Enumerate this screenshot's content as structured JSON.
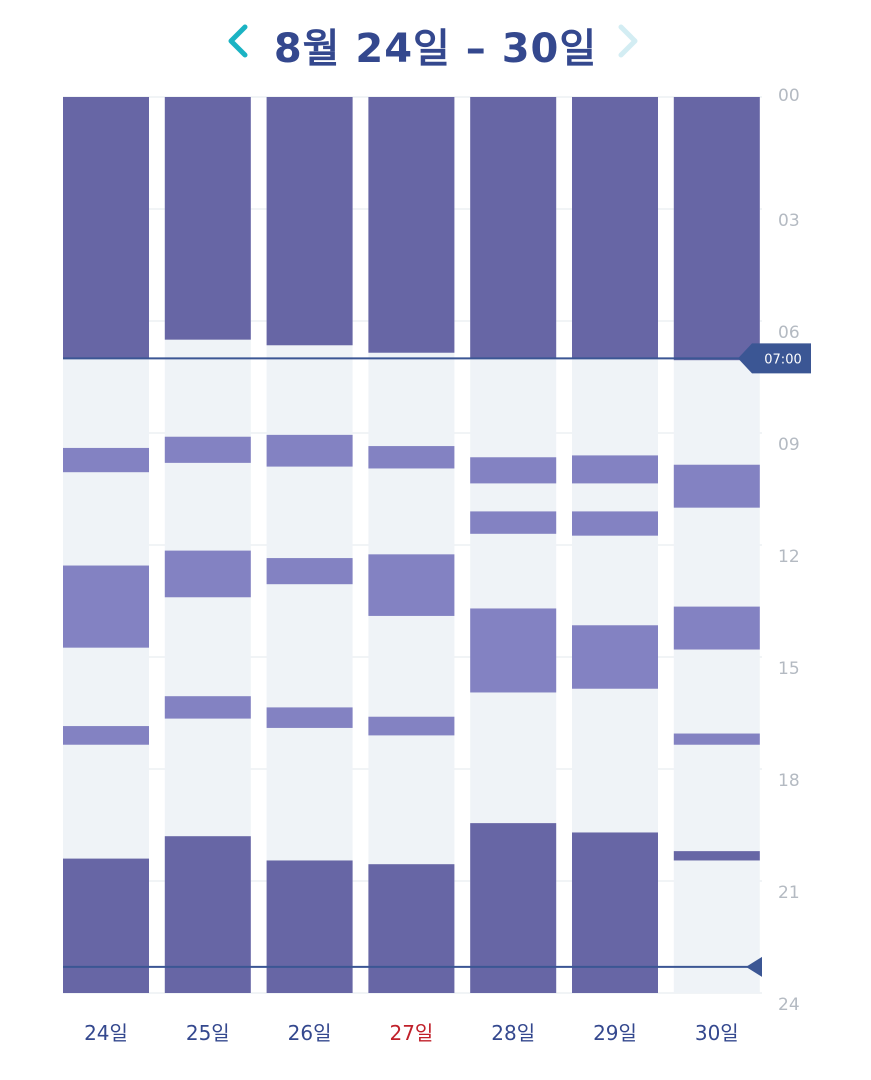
{
  "header": {
    "title": "8월 24일 – 30일",
    "prev_icon": "chevron-left-icon",
    "next_icon": "chevron-right-icon"
  },
  "colors": {
    "title": "#34488e",
    "prev_arrow": "#1bb3c3",
    "next_arrow": "#d3edf3",
    "sleep_dark": "#6766a5",
    "sleep_light": "#8382c2",
    "awake": "#eff3f7",
    "grid": "#e3e8ee",
    "axis_text": "#b4bac2",
    "marker": "#3b5694",
    "day_label": "#34488e",
    "day_label_highlight": "#c0202a"
  },
  "chart_data": {
    "type": "bar",
    "orientation": "vertical-timeline",
    "y_axis": {
      "range": [
        0,
        24
      ],
      "ticks": [
        "00",
        "03",
        "06",
        "09",
        "12",
        "15",
        "18",
        "21",
        "24"
      ]
    },
    "markers": [
      {
        "hour": 7.0,
        "label": "07:00"
      },
      {
        "hour": 23.3,
        "label": ""
      }
    ],
    "days": [
      {
        "label": "24일",
        "highlight": false,
        "blocks": [
          {
            "start": 0,
            "end": 7.0,
            "kind": "dark"
          },
          {
            "start": 9.4,
            "end": 10.05,
            "kind": "light"
          },
          {
            "start": 12.55,
            "end": 14.75,
            "kind": "light"
          },
          {
            "start": 16.85,
            "end": 17.35,
            "kind": "light"
          },
          {
            "start": 20.4,
            "end": 24,
            "kind": "dark"
          }
        ]
      },
      {
        "label": "25일",
        "highlight": false,
        "blocks": [
          {
            "start": 0,
            "end": 6.5,
            "kind": "dark"
          },
          {
            "start": 9.1,
            "end": 9.8,
            "kind": "light"
          },
          {
            "start": 12.15,
            "end": 13.4,
            "kind": "light"
          },
          {
            "start": 16.05,
            "end": 16.65,
            "kind": "light"
          },
          {
            "start": 19.8,
            "end": 24,
            "kind": "dark"
          }
        ]
      },
      {
        "label": "26일",
        "highlight": false,
        "blocks": [
          {
            "start": 0,
            "end": 6.65,
            "kind": "dark"
          },
          {
            "start": 9.05,
            "end": 9.9,
            "kind": "light"
          },
          {
            "start": 12.35,
            "end": 13.05,
            "kind": "light"
          },
          {
            "start": 16.35,
            "end": 16.9,
            "kind": "light"
          },
          {
            "start": 20.45,
            "end": 24,
            "kind": "dark"
          }
        ]
      },
      {
        "label": "27일",
        "highlight": true,
        "blocks": [
          {
            "start": 0,
            "end": 6.85,
            "kind": "dark"
          },
          {
            "start": 9.35,
            "end": 9.95,
            "kind": "light"
          },
          {
            "start": 12.25,
            "end": 13.9,
            "kind": "light"
          },
          {
            "start": 16.6,
            "end": 17.1,
            "kind": "light"
          },
          {
            "start": 20.55,
            "end": 24,
            "kind": "dark"
          }
        ]
      },
      {
        "label": "28일",
        "highlight": false,
        "blocks": [
          {
            "start": 0,
            "end": 7.0,
            "kind": "dark"
          },
          {
            "start": 9.65,
            "end": 10.35,
            "kind": "light"
          },
          {
            "start": 11.1,
            "end": 11.7,
            "kind": "light"
          },
          {
            "start": 13.7,
            "end": 15.95,
            "kind": "light"
          },
          {
            "start": 19.45,
            "end": 24,
            "kind": "dark"
          }
        ]
      },
      {
        "label": "29일",
        "highlight": false,
        "blocks": [
          {
            "start": 0,
            "end": 7.0,
            "kind": "dark"
          },
          {
            "start": 9.6,
            "end": 10.35,
            "kind": "light"
          },
          {
            "start": 11.1,
            "end": 11.75,
            "kind": "light"
          },
          {
            "start": 14.15,
            "end": 15.85,
            "kind": "light"
          },
          {
            "start": 19.7,
            "end": 24,
            "kind": "dark"
          }
        ]
      },
      {
        "label": "30일",
        "highlight": false,
        "blocks": [
          {
            "start": 0,
            "end": 7.05,
            "kind": "dark"
          },
          {
            "start": 9.85,
            "end": 11.0,
            "kind": "light"
          },
          {
            "start": 13.65,
            "end": 14.8,
            "kind": "light"
          },
          {
            "start": 17.05,
            "end": 17.35,
            "kind": "light"
          },
          {
            "start": 20.2,
            "end": 20.45,
            "kind": "dark"
          }
        ]
      }
    ]
  }
}
